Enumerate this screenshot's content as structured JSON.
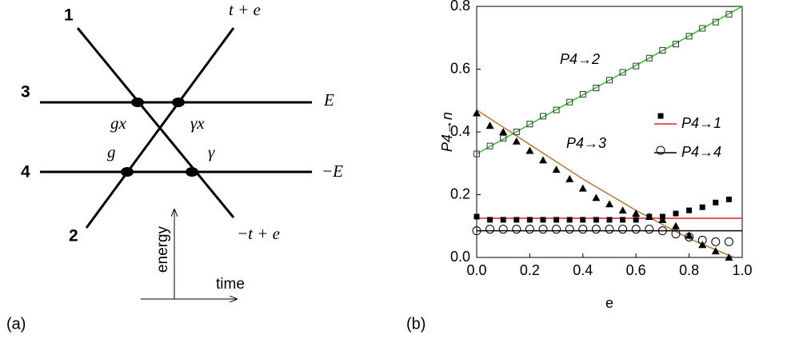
{
  "panel_a": {
    "label": "(a)",
    "levels": [
      "1",
      "2",
      "3",
      "4"
    ],
    "line_ends": [
      "t + e",
      "E",
      "−E",
      "−t + e"
    ],
    "crossings": [
      "gx",
      "γx",
      "g",
      "γ"
    ],
    "axes": [
      "energy",
      "time"
    ]
  },
  "chart_data": {
    "type": "scatter",
    "panel_label": "(b)",
    "xlabel": "e",
    "ylabel": "P4→n",
    "xlim": [
      0,
      1
    ],
    "ylim": [
      0,
      0.8
    ],
    "xticks": [
      {
        "value": 0,
        "label": "0.0"
      },
      {
        "value": 0.2,
        "label": "0.2"
      },
      {
        "value": 0.4,
        "label": "0.4"
      },
      {
        "value": 0.6,
        "label": "0.6"
      },
      {
        "value": 0.8,
        "label": "0.8"
      },
      {
        "value": 1,
        "label": "1.0"
      }
    ],
    "yticks": [
      {
        "value": 0,
        "label": "0.0"
      },
      {
        "value": 0.2,
        "label": "0.2"
      },
      {
        "value": 0.4,
        "label": "0.4"
      },
      {
        "value": 0.6,
        "label": "0.6"
      },
      {
        "value": 0.8,
        "label": "0.8"
      }
    ],
    "x": [
      0,
      0.05,
      0.1,
      0.15,
      0.2,
      0.25,
      0.3,
      0.35,
      0.4,
      0.45,
      0.5,
      0.55,
      0.6,
      0.65,
      0.7,
      0.75,
      0.8,
      0.85,
      0.9,
      0.95
    ],
    "series": [
      {
        "name": "P4→2",
        "color": "#33bb33",
        "marker": "open-square",
        "legend": false,
        "values": [
          0.33,
          0.355,
          0.38,
          0.4,
          0.425,
          0.45,
          0.47,
          0.495,
          0.52,
          0.54,
          0.565,
          0.59,
          0.61,
          0.635,
          0.66,
          0.68,
          0.705,
          0.73,
          0.75,
          0.775
        ],
        "fit": {
          "x": [
            0,
            1
          ],
          "values": [
            0.33,
            0.8
          ]
        }
      },
      {
        "name": "P4→3",
        "color": "#b07a3a",
        "marker": "filled-triangle",
        "legend": false,
        "values": [
          0.46,
          0.42,
          0.4,
          0.37,
          0.34,
          0.31,
          0.28,
          0.25,
          0.22,
          0.19,
          0.17,
          0.15,
          0.14,
          0.13,
          0.12,
          0.1,
          0.07,
          0.04,
          0.02,
          0
        ],
        "fit": {
          "x": [
            0,
            0.2,
            0.4,
            0.6,
            0.8,
            0.97
          ],
          "values": [
            0.47,
            0.36,
            0.25,
            0.15,
            0.06,
            0
          ]
        }
      },
      {
        "name": "P4→1",
        "color": "#e02020",
        "marker": "filled-square",
        "legend": true,
        "values": [
          0.13,
          0.12,
          0.12,
          0.12,
          0.12,
          0.12,
          0.12,
          0.12,
          0.12,
          0.12,
          0.12,
          0.12,
          0.12,
          0.13,
          0.13,
          0.14,
          0.15,
          0.16,
          0.175,
          0.185
        ],
        "fit": {
          "x": [
            0,
            1
          ],
          "values": [
            0.125,
            0.125
          ]
        }
      },
      {
        "name": "P4→4",
        "color": "#000000",
        "marker": "open-circle",
        "legend": true,
        "values": [
          0.085,
          0.09,
          0.09,
          0.09,
          0.09,
          0.09,
          0.09,
          0.09,
          0.09,
          0.09,
          0.09,
          0.09,
          0.09,
          0.09,
          0.085,
          0.075,
          0.065,
          0.055,
          0.05,
          0.05
        ],
        "fit": {
          "x": [
            0,
            1
          ],
          "values": [
            0.085,
            0.085
          ]
        }
      }
    ]
  }
}
